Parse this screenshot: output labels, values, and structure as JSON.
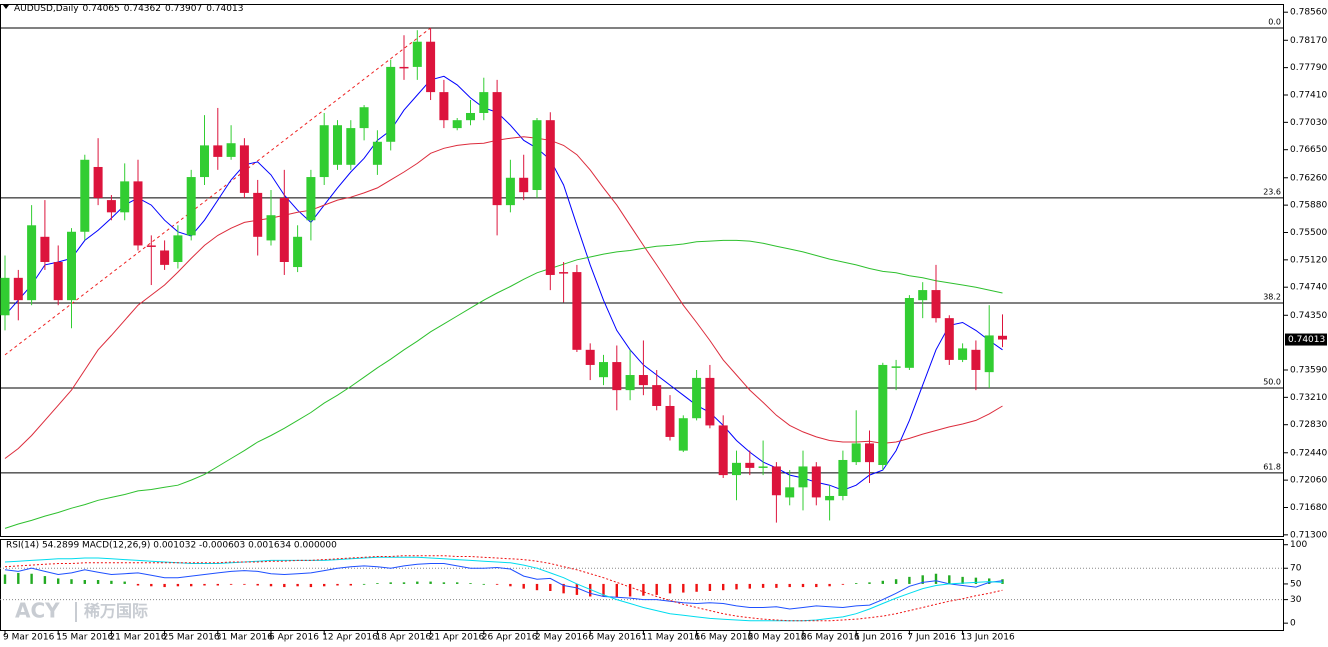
{
  "chart_data": [
    {
      "type": "candlestick",
      "title": "AUDUSD,Daily",
      "categories": [
        "9 Mar 2016",
        null,
        null,
        null,
        "15 Mar 2016",
        null,
        null,
        null,
        "21 Mar 2016",
        null,
        null,
        null,
        "25 Mar 2016",
        null,
        null,
        null,
        "31 Mar 2016",
        null,
        null,
        null,
        "6 Apr 2016",
        null,
        null,
        null,
        "12 Apr 2016",
        null,
        null,
        null,
        "18 Apr 2016",
        null,
        null,
        null,
        "21 Apr 2016",
        null,
        null,
        null,
        "26 Apr 2016",
        null,
        null,
        null,
        "2 May 2016",
        null,
        null,
        null,
        "6 May 2016",
        null,
        null,
        null,
        "11 May 2016",
        null,
        null,
        null,
        "16 May 2016",
        null,
        null,
        null,
        "20 May 2016",
        null,
        null,
        null,
        "26 May 2016",
        null,
        null,
        null,
        "1 Jun 2016",
        null,
        null,
        null,
        "7 Jun 2016",
        null,
        null,
        null,
        "13 Jun 2016",
        null,
        null,
        null
      ],
      "open": [
        0.7435,
        0.7487,
        0.7456,
        0.7544,
        0.7509,
        0.7456,
        0.7551,
        0.7641,
        0.7595,
        0.7578,
        0.7621,
        0.7532,
        0.7525,
        0.7509,
        0.7546,
        0.7627,
        0.7671,
        0.7655,
        0.7671,
        0.7605,
        0.7539,
        0.7598,
        0.7502,
        0.7567,
        0.7627,
        0.7644,
        0.7644,
        0.7695,
        0.7644,
        0.7676,
        0.778,
        0.778,
        0.7815,
        0.7745,
        0.7695,
        0.7706,
        0.7716,
        0.7745,
        0.7588,
        0.7626,
        0.7609,
        0.7706,
        0.7495,
        0.7495,
        0.7387,
        0.7349,
        0.737,
        0.7331,
        0.7352,
        0.7338,
        0.7309,
        0.7247,
        0.7292,
        0.7348,
        0.7282,
        0.7213,
        0.723,
        0.7223,
        0.7225,
        0.7182,
        0.7196,
        0.7225,
        0.7178,
        0.7184,
        0.7231,
        0.7257,
        0.7227,
        0.7363,
        0.7362,
        0.7456,
        0.747,
        0.7431,
        0.7373,
        0.7387,
        0.7356,
        0.74065
      ],
      "high": [
        0.7518,
        0.7498,
        0.7588,
        0.7595,
        0.7532,
        0.7556,
        0.7658,
        0.7681,
        0.7602,
        0.7646,
        0.7651,
        0.7546,
        0.7539,
        0.756,
        0.7637,
        0.7713,
        0.7723,
        0.7699,
        0.7681,
        0.7623,
        0.7609,
        0.7637,
        0.756,
        0.7637,
        0.7716,
        0.7706,
        0.7706,
        0.7727,
        0.7692,
        0.779,
        0.7824,
        0.7831,
        0.7834,
        0.7762,
        0.7709,
        0.7734,
        0.7765,
        0.7762,
        0.7651,
        0.7658,
        0.7709,
        0.7717,
        0.7509,
        0.7505,
        0.7396,
        0.738,
        0.7393,
        0.7387,
        0.74,
        0.7359,
        0.7324,
        0.7296,
        0.7359,
        0.7366,
        0.7296,
        0.7247,
        0.7247,
        0.7261,
        0.7231,
        0.722,
        0.7247,
        0.7231,
        0.7199,
        0.7247,
        0.7303,
        0.7275,
        0.7369,
        0.7373,
        0.7463,
        0.7481,
        0.7505,
        0.7435,
        0.7396,
        0.74,
        0.7449,
        0.74362
      ],
      "low": [
        0.7414,
        0.7428,
        0.7449,
        0.7498,
        0.7449,
        0.7417,
        0.7539,
        0.7588,
        0.7567,
        0.7567,
        0.7525,
        0.7477,
        0.7498,
        0.75,
        0.7539,
        0.7616,
        0.7637,
        0.7651,
        0.7598,
        0.7518,
        0.7532,
        0.7491,
        0.7495,
        0.7539,
        0.7616,
        0.7637,
        0.7637,
        0.7678,
        0.763,
        0.7664,
        0.7762,
        0.7762,
        0.7734,
        0.7695,
        0.7692,
        0.7699,
        0.7706,
        0.7546,
        0.7578,
        0.7595,
        0.7598,
        0.747,
        0.7453,
        0.7384,
        0.7345,
        0.7338,
        0.7303,
        0.7317,
        0.7324,
        0.7303,
        0.7261,
        0.7245,
        0.7289,
        0.7278,
        0.7209,
        0.7178,
        0.7213,
        0.7213,
        0.7147,
        0.7171,
        0.7164,
        0.7171,
        0.715,
        0.7178,
        0.7227,
        0.7202,
        0.722,
        0.7331,
        0.7359,
        0.7431,
        0.7425,
        0.7366,
        0.737,
        0.7331,
        0.7334,
        0.73907
      ],
      "close": [
        0.7487,
        0.7456,
        0.756,
        0.7509,
        0.7456,
        0.7551,
        0.7651,
        0.7598,
        0.7578,
        0.7621,
        0.7532,
        0.753,
        0.7505,
        0.7546,
        0.7627,
        0.7671,
        0.7655,
        0.7674,
        0.7605,
        0.7544,
        0.7574,
        0.7509,
        0.7544,
        0.7627,
        0.7699,
        0.7699,
        0.7695,
        0.7724,
        0.7676,
        0.778,
        0.7779,
        0.7815,
        0.7745,
        0.7706,
        0.7706,
        0.7716,
        0.7745,
        0.7588,
        0.7626,
        0.7606,
        0.7706,
        0.7491,
        0.7494,
        0.7387,
        0.7366,
        0.737,
        0.7331,
        0.7352,
        0.7338,
        0.7309,
        0.7266,
        0.7292,
        0.7348,
        0.7282,
        0.7213,
        0.723,
        0.7223,
        0.7225,
        0.7185,
        0.7196,
        0.7225,
        0.7182,
        0.7184,
        0.7234,
        0.7257,
        0.7231,
        0.7366,
        0.7364,
        0.7459,
        0.747,
        0.7431,
        0.7373,
        0.7389,
        0.7359,
        0.7407,
        0.74013
      ],
      "up_color": "#32cd32",
      "down_color": "#dc143c",
      "series": [
        {
          "color": "#0000ff",
          "values": [
            0.7435,
            0.7456,
            0.7477,
            0.7505,
            0.7509,
            0.7514,
            0.7539,
            0.7553,
            0.757,
            0.7588,
            0.7598,
            0.7588,
            0.7567,
            0.7551,
            0.7545,
            0.7567,
            0.7595,
            0.7623,
            0.7644,
            0.7648,
            0.763,
            0.7602,
            0.7581,
            0.7564,
            0.7588,
            0.7612,
            0.7634,
            0.7653,
            0.7678,
            0.7692,
            0.772,
            0.7741,
            0.7762,
            0.7767,
            0.7755,
            0.7737,
            0.7723,
            0.7717,
            0.7699,
            0.7678,
            0.7667,
            0.7651,
            0.7616,
            0.756,
            0.7505,
            0.7456,
            0.7414,
            0.7387,
            0.7366,
            0.7352,
            0.7338,
            0.7324,
            0.731,
            0.73,
            0.7282,
            0.7261,
            0.7245,
            0.7231,
            0.7223,
            0.7213,
            0.7209,
            0.7203,
            0.7199,
            0.7192,
            0.7199,
            0.7213,
            0.722,
            0.7247,
            0.7289,
            0.7338,
            0.7387,
            0.7421,
            0.7425,
            0.7414,
            0.74,
            0.7387
          ]
        },
        {
          "color": "#dc2c3c",
          "values": [
            0.7236,
            0.725,
            0.7268,
            0.7289,
            0.731,
            0.7331,
            0.7359,
            0.7387,
            0.7407,
            0.7428,
            0.7449,
            0.7463,
            0.7477,
            0.7495,
            0.7514,
            0.7532,
            0.7546,
            0.7556,
            0.7564,
            0.7567,
            0.757,
            0.7574,
            0.7578,
            0.7581,
            0.7588,
            0.7595,
            0.7599,
            0.7605,
            0.7612,
            0.7623,
            0.7634,
            0.7646,
            0.766,
            0.7667,
            0.7671,
            0.7673,
            0.7674,
            0.7678,
            0.7681,
            0.7683,
            0.7681,
            0.7678,
            0.7671,
            0.7658,
            0.7637,
            0.7612,
            0.7588,
            0.756,
            0.7532,
            0.7505,
            0.7477,
            0.7449,
            0.7425,
            0.74,
            0.7373,
            0.7352,
            0.7331,
            0.7314,
            0.7296,
            0.7282,
            0.7273,
            0.7266,
            0.7261,
            0.7259,
            0.7259,
            0.726,
            0.7257,
            0.7259,
            0.7264,
            0.727,
            0.7275,
            0.728,
            0.7284,
            0.7289,
            0.7298,
            0.7309
          ]
        },
        {
          "color": "#2ec02e",
          "values": [
            0.7139,
            0.7145,
            0.715,
            0.7156,
            0.7161,
            0.7167,
            0.7172,
            0.7178,
            0.7182,
            0.7186,
            0.7191,
            0.7193,
            0.7196,
            0.7199,
            0.7206,
            0.7214,
            0.7225,
            0.7236,
            0.7247,
            0.7259,
            0.7268,
            0.7278,
            0.7289,
            0.73,
            0.7313,
            0.7324,
            0.7336,
            0.7349,
            0.7362,
            0.7374,
            0.7387,
            0.7399,
            0.7412,
            0.7423,
            0.7434,
            0.7445,
            0.7456,
            0.7466,
            0.7475,
            0.7485,
            0.7494,
            0.75,
            0.7506,
            0.7512,
            0.7516,
            0.752,
            0.7523,
            0.7525,
            0.7528,
            0.7531,
            0.7532,
            0.7534,
            0.7537,
            0.7538,
            0.7539,
            0.7539,
            0.7538,
            0.7535,
            0.7531,
            0.7527,
            0.7523,
            0.7518,
            0.7513,
            0.7509,
            0.7505,
            0.75,
            0.7496,
            0.7494,
            0.749,
            0.7487,
            0.7483,
            0.748,
            0.7477,
            0.7474,
            0.747,
            0.7466
          ]
        }
      ],
      "fib_levels": [
        {
          "value": 0.7834,
          "label": "0.0"
        },
        {
          "value": 0.7598,
          "label": "23.6"
        },
        {
          "value": 0.7452,
          "label": "38.2"
        },
        {
          "value": 0.7334,
          "label": "50.0"
        },
        {
          "value": 0.7216,
          "label": "61.8"
        }
      ],
      "trendline": {
        "start": 0.738,
        "end": 0.7834
      },
      "ylim": [
        0.7127,
        0.7866
      ],
      "yticks": [
        {
          "value": 0.7856,
          "label": "0.78560"
        },
        {
          "value": 0.7817,
          "label": "0.78170"
        },
        {
          "value": 0.7779,
          "label": "0.77790"
        },
        {
          "value": 0.7741,
          "label": "0.77410"
        },
        {
          "value": 0.7703,
          "label": "0.77030"
        },
        {
          "value": 0.7665,
          "label": "0.76650"
        },
        {
          "value": 0.7626,
          "label": "0.76260"
        },
        {
          "value": 0.7588,
          "label": "0.75880"
        },
        {
          "value": 0.755,
          "label": "0.75500"
        },
        {
          "value": 0.7512,
          "label": "0.75120"
        },
        {
          "value": 0.7474,
          "label": "0.74740"
        },
        {
          "value": 0.7435,
          "label": "0.74350"
        },
        {
          "value": 0.7359,
          "label": "0.73590"
        },
        {
          "value": 0.7321,
          "label": "0.73210"
        },
        {
          "value": 0.7283,
          "label": "0.72830"
        },
        {
          "value": 0.7244,
          "label": "0.72440"
        },
        {
          "value": 0.7206,
          "label": "0.72060"
        },
        {
          "value": 0.7168,
          "label": "0.71680"
        },
        {
          "value": 0.713,
          "label": "0.71300"
        }
      ]
    },
    {
      "type": "indicator",
      "title": "RSI(14) 54.2899  MACD(12,26,9) 0.001032 -0.000603 0.001634 0.000000",
      "histogram": {
        "up_color": "#22aa22",
        "down_color": "#ee1111",
        "values": [
          62,
          64,
          63,
          60,
          57,
          56,
          55,
          55,
          54,
          53,
          48,
          47,
          46,
          47,
          47,
          48,
          48,
          49,
          49,
          48,
          47,
          46,
          47,
          46,
          47,
          48,
          48,
          50,
          51,
          52,
          52,
          53,
          53,
          52,
          52,
          51,
          50,
          49,
          47,
          44,
          42,
          41,
          38,
          36,
          34,
          34,
          33,
          34,
          35,
          36,
          38,
          39,
          40,
          41,
          42,
          43,
          44,
          45,
          45,
          46,
          46,
          46,
          47,
          49,
          51,
          52,
          54,
          56,
          59,
          61,
          63,
          61,
          59,
          58,
          57,
          56
        ]
      },
      "series": [
        {
          "color": "#1e50ff",
          "values": [
            68,
            66,
            70,
            66,
            62,
            64,
            68,
            65,
            62,
            63,
            64,
            61,
            58,
            58,
            60,
            62,
            64,
            66,
            67,
            66,
            63,
            62,
            63,
            64,
            67,
            70,
            72,
            73,
            72,
            70,
            73,
            75,
            76,
            76,
            73,
            70,
            70,
            71,
            69,
            60,
            56,
            57,
            48,
            45,
            38,
            34,
            33,
            32,
            30,
            30,
            28,
            26,
            25,
            26,
            25,
            22,
            20,
            20,
            21,
            18,
            20,
            22,
            21,
            20,
            22,
            23,
            30,
            38,
            47,
            52,
            54,
            50,
            48,
            46,
            52,
            54
          ]
        },
        {
          "color": "#00dcee",
          "values": [
            78,
            79,
            80,
            81,
            82,
            82,
            83,
            83,
            82,
            81,
            80,
            79,
            78,
            77,
            76,
            76,
            76,
            77,
            78,
            79,
            80,
            80,
            80,
            80,
            80,
            81,
            82,
            83,
            84,
            84,
            84,
            84,
            83,
            82,
            81,
            80,
            79,
            78,
            77,
            74,
            70,
            64,
            58,
            50,
            43,
            36,
            30,
            25,
            20,
            16,
            12,
            10,
            8,
            6,
            5,
            4,
            3,
            3,
            3,
            3,
            3,
            4,
            6,
            8,
            12,
            18,
            25,
            32,
            38,
            44,
            48,
            50,
            51,
            52,
            53,
            52
          ]
        },
        {
          "color": "#ee1111",
          "dash": true,
          "values": [
            72,
            73,
            74,
            75,
            76,
            76,
            77,
            77,
            77,
            77,
            77,
            77,
            77,
            77,
            77,
            77,
            77,
            78,
            78,
            78,
            79,
            79,
            80,
            80,
            81,
            82,
            83,
            84,
            85,
            85,
            86,
            86,
            86,
            86,
            85,
            85,
            84,
            83,
            82,
            81,
            79,
            76,
            72,
            68,
            63,
            58,
            52,
            46,
            40,
            34,
            29,
            24,
            20,
            16,
            12,
            9,
            7,
            5,
            4,
            3,
            3,
            3,
            3,
            4,
            5,
            7,
            9,
            12,
            16,
            20,
            24,
            28,
            31,
            35,
            38,
            42
          ]
        }
      ],
      "levels": [
        70,
        30
      ],
      "ylim": [
        -10,
        106
      ],
      "yticks": [
        100,
        70,
        50,
        30,
        0
      ],
      "watermark": [
        "ACY",
        "稀万国际"
      ]
    }
  ]
}
